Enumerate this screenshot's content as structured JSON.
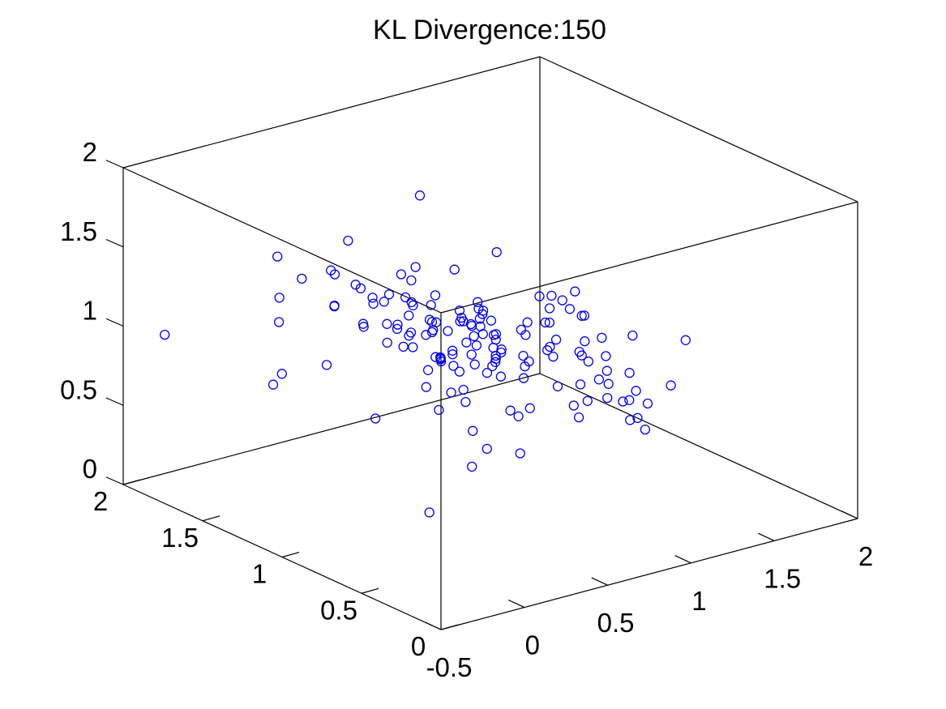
{
  "chart_data": {
    "type": "scatter",
    "projection": "3d",
    "title": "KL Divergence:150",
    "xlabel": "",
    "ylabel": "",
    "zlabel": "",
    "xlim": [
      -0.5,
      2
    ],
    "ylim": [
      0,
      2
    ],
    "zlim": [
      0,
      2
    ],
    "x_ticks": [
      "-0.5",
      "0",
      "0.5",
      "1",
      "1.5",
      "2"
    ],
    "y_ticks": [
      "0",
      "0.5",
      "1",
      "1.5",
      "2"
    ],
    "z_ticks": [
      "0",
      "0.5",
      "1",
      "1.5",
      "2"
    ],
    "marker": "open-circle",
    "grid": false,
    "legend": "none",
    "colors": {
      "points": "#0000ee",
      "axes": "#000000",
      "background": "#ffffff"
    },
    "series": [
      {
        "x": [
          0.01,
          0.11,
          -0.48,
          0.65,
          0.4,
          0.8,
          0.52,
          0.16,
          0.98,
          0.79,
          0.32,
          0.46,
          0.34,
          -0.11,
          0.01,
          0.22,
          1.19,
          0.29,
          0.88,
          0.25,
          0.93,
          0.87,
          0.32,
          0.92,
          0.61,
          0.41,
          1.06,
          0.83,
          0.6,
          0.51,
          0.18,
          -0.01,
          0.05,
          0.88,
          0.64,
          0.44,
          1.29,
          1.26,
          0.37,
          0.82,
          0.88,
          0.2,
          0.46,
          0.27,
          0.9,
          -0.15,
          0.87,
          0.53,
          0.59,
          0.75,
          1.04,
          0.46,
          0.57,
          0.81,
          0.62,
          0.64,
          0.62,
          -0.02,
          0.74,
          0.74,
          0.49,
          0.81,
          0.52,
          0.11,
          0.33,
          0.48,
          0.52,
          0.2,
          0.44,
          0.51,
          0.82,
          0.81,
          0.66,
          0.52,
          1.28,
          1.33,
          1.07,
          0.6,
          0.86,
          0.93,
          0.36,
          0.72,
          0.51,
          1.05,
          0.47,
          0.79,
          0.95,
          0.81,
          0.67,
          0.89,
          1.06,
          0.58,
          0.29,
          0.58,
          0.22,
          0.94,
          0.35,
          0.17,
          0.74,
          0.49,
          0.53,
          0.62,
          0.49,
          0.95,
          0.89,
          1.0,
          0.32,
          0.68,
          0.49,
          0.88,
          0.35,
          1.04,
          0.85,
          0.82,
          0.86,
          0.77,
          0.68,
          0.82,
          -0.14,
          0.61,
          1.0,
          0.84,
          0.28,
          0.73,
          0.45,
          0.5,
          0.78,
          0.84,
          0.6,
          1.01,
          0.73,
          0.72,
          0.79,
          0.54,
          0.71,
          0.34,
          0.61,
          0.85,
          0.98,
          0.44,
          0.41,
          0.39,
          0.56,
          0.67,
          0.64,
          0.83,
          0.81,
          0.7,
          0.54,
          0.8
        ],
        "y": [
          0.38,
          1.66,
          1.76,
          1.43,
          1.82,
          1.85,
          1.23,
          0.36,
          0.63,
          1.03,
          1.89,
          1.7,
          0.74,
          1.41,
          0.34,
          1.34,
          0.87,
          0.75,
          1.58,
          0.8,
          0.31,
          0.39,
          1.2,
          1.16,
          0.17,
          1.23,
          0.75,
          1.31,
          1.21,
          1.49,
          0.95,
          1.57,
          0.67,
          0.57,
          0.36,
          0.72,
          0.84,
          0.64,
          1.45,
          0.88,
          0.22,
          1.24,
          0.63,
          0.29,
          1.28,
          0.44,
          0.2,
          1.08,
          1.33,
          1.05,
          0.33,
          1.28,
          1.05,
          1.31,
          0.44,
          1.2,
          0.45,
          0.46,
          0.95,
          1.07,
          1.11,
          1.11,
          1.56,
          0.35,
          1.59,
          1.03,
          0.87,
          1.16,
          1.02,
          1.73,
          0.48,
          0.82,
          1.1,
          1.1,
          0.42,
          0.38,
          0.46,
          0.93,
          1.08,
          0.88,
          0.71,
          1.33,
          1.31,
          0.97,
          0.9,
          1.28,
          0.22,
          1.55,
          1.29,
          0.53,
          0.75,
          1.31,
          0.33,
          0.92,
          0.41,
          0.7,
          1.23,
          1.72,
          0.92,
          1.04,
          0.79,
          1.36,
          1.71,
          0.65,
          0.59,
          0.89,
          0.3,
          1.03,
          1.24,
          0.96,
          1.56,
          0.43,
          0.72,
          0.33,
          1.19,
          0.99,
          0.99,
          0.24,
          0.79,
          0.92,
          0.73,
          1.06,
          0.29,
          0.77,
          0.56,
          1.13,
          0.81,
          0.72,
          0.96,
          0.82,
          1.13,
          1.15,
          0.67,
          0.95,
          0.6,
          1.07,
          1.2,
          0.71,
          0.54,
          0.67,
          1.01,
          1.26,
          1.47,
          1.43,
          1.29,
          0.35,
          1.03,
          0.88,
          0.97,
          0.82
        ],
        "z": [
          1.12,
          1.01,
          1.05,
          1.12,
          1.13,
          0.7,
          1.44,
          1.51,
          0.74,
          0.83,
          1.26,
          1.22,
          0.94,
          0.86,
          0.73,
          1.64,
          1.11,
          1.1,
          1.63,
          0.81,
          0.78,
          0.9,
          1.15,
          0.85,
          1.19,
          1.08,
          1.2,
          1.3,
          1.08,
          1.13,
          1.16,
          0.69,
          1.07,
          0.9,
          0.93,
          1.42,
          0.84,
          1.07,
          1.27,
          1.12,
          1.02,
          1.39,
          1.04,
          1.38,
          0.95,
          0.44,
          0.86,
          0.91,
          1.29,
          1.16,
          0.68,
          1.07,
          0.98,
          0.53,
          1.02,
          0.85,
          1.31,
          1.54,
          1.6,
          1.23,
          1.17,
          0.99,
          0.93,
          0.81,
          0.71,
          0.96,
          0.57,
          1.33,
          0.99,
          0.97,
          1.23,
          0.95,
          0.8,
          1.15,
          0.85,
          1.14,
          0.97,
          1.06,
          0.99,
          1.3,
          1.17,
          0.94,
          1.36,
          1.06,
          1.33,
          0.79,
          0.92,
          0.97,
          1.13,
          1.06,
          0.95,
          0.88,
          0.74,
          0.95,
          1.32,
          1.3,
          1.01,
          1.12,
          1.0,
          0.96,
          0.97,
          1.13,
          0.98,
          1.05,
          0.68,
          1.2,
          1.03,
          1.05,
          1.01,
          0.52,
          1.29,
          0.82,
          1.4,
          1.03,
          1.1,
          0.88,
          1.13,
          0.96,
          0.87,
          1.23,
          1.38,
          0.97,
          1.31,
          0.89,
          0.86,
          0.84,
          1.13,
          1.08,
          1.17,
          1.28,
          0.95,
          1.1,
          1.27,
          1.22,
          1.15,
          1.15,
          1.25,
          1.02,
          1.18,
          1.38,
          1.16,
          1.29,
          1.1,
          1.0,
          0.95,
          1.1,
          0.89,
          1.01,
          1.21,
          1.2
        ]
      }
    ]
  }
}
